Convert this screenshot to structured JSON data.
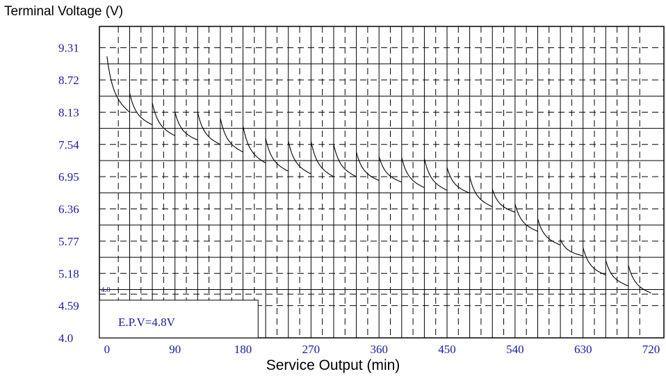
{
  "chart_data": {
    "type": "line",
    "ylabel": "Terminal Voltage (V)",
    "xlabel": "Service Output (min)",
    "xlim": [
      -10,
      737
    ],
    "ylim": [
      4.0,
      9.7
    ],
    "x_ticks": [
      0,
      90,
      180,
      270,
      360,
      450,
      540,
      630,
      720
    ],
    "x_tick_labels": [
      "0",
      "90",
      "180",
      "270",
      "360",
      "450",
      "540",
      "630",
      "720"
    ],
    "y_ticks": [
      4.0,
      4.59,
      5.18,
      5.77,
      6.36,
      6.95,
      7.54,
      8.13,
      8.72,
      9.31
    ],
    "y_tick_labels": [
      "4.0",
      "4.59",
      "5.18",
      "5.77",
      "6.36",
      "6.95",
      "7.54",
      "8.13",
      "8.72",
      "9.31"
    ],
    "reference_line": {
      "y": 4.8,
      "label": "4.8"
    },
    "annotation": "E.P.V=4.8V",
    "grid": true,
    "series": [
      {
        "segments": [
          {
            "start": [
              0,
              9.15
            ],
            "end": [
              30,
              8.13
            ]
          },
          {
            "start": [
              30,
              8.48
            ],
            "end": [
              60,
              7.9
            ]
          },
          {
            "start": [
              60,
              8.3
            ],
            "end": [
              90,
              7.7
            ]
          },
          {
            "start": [
              90,
              8.13
            ],
            "end": [
              120,
              7.62
            ]
          },
          {
            "start": [
              120,
              8.13
            ],
            "end": [
              150,
              7.54
            ]
          },
          {
            "start": [
              150,
              8.02
            ],
            "end": [
              180,
              7.4
            ]
          },
          {
            "start": [
              180,
              7.88
            ],
            "end": [
              210,
              7.2
            ]
          },
          {
            "start": [
              210,
              7.65
            ],
            "end": [
              240,
              7.05
            ]
          },
          {
            "start": [
              240,
              7.6
            ],
            "end": [
              270,
              7.0
            ]
          },
          {
            "start": [
              270,
              7.6
            ],
            "end": [
              300,
              6.95
            ]
          },
          {
            "start": [
              300,
              7.54
            ],
            "end": [
              330,
              6.95
            ]
          },
          {
            "start": [
              330,
              7.4
            ],
            "end": [
              360,
              6.88
            ]
          },
          {
            "start": [
              360,
              7.32
            ],
            "end": [
              390,
              6.85
            ]
          },
          {
            "start": [
              390,
              7.3
            ],
            "end": [
              420,
              6.75
            ]
          },
          {
            "start": [
              420,
              7.28
            ],
            "end": [
              450,
              6.7
            ]
          },
          {
            "start": [
              450,
              7.12
            ],
            "end": [
              480,
              6.65
            ]
          },
          {
            "start": [
              480,
              6.95
            ],
            "end": [
              510,
              6.4
            ]
          },
          {
            "start": [
              510,
              6.72
            ],
            "end": [
              540,
              6.3
            ]
          },
          {
            "start": [
              540,
              6.45
            ],
            "end": [
              570,
              5.95
            ]
          },
          {
            "start": [
              570,
              6.18
            ],
            "end": [
              600,
              5.7
            ]
          },
          {
            "start": [
              600,
              5.8
            ],
            "end": [
              630,
              5.5
            ]
          },
          {
            "start": [
              630,
              5.65
            ],
            "end": [
              660,
              5.15
            ]
          },
          {
            "start": [
              660,
              5.42
            ],
            "end": [
              690,
              4.95
            ]
          },
          {
            "start": [
              690,
              5.33
            ],
            "end": [
              720,
              4.82
            ]
          }
        ]
      }
    ]
  }
}
